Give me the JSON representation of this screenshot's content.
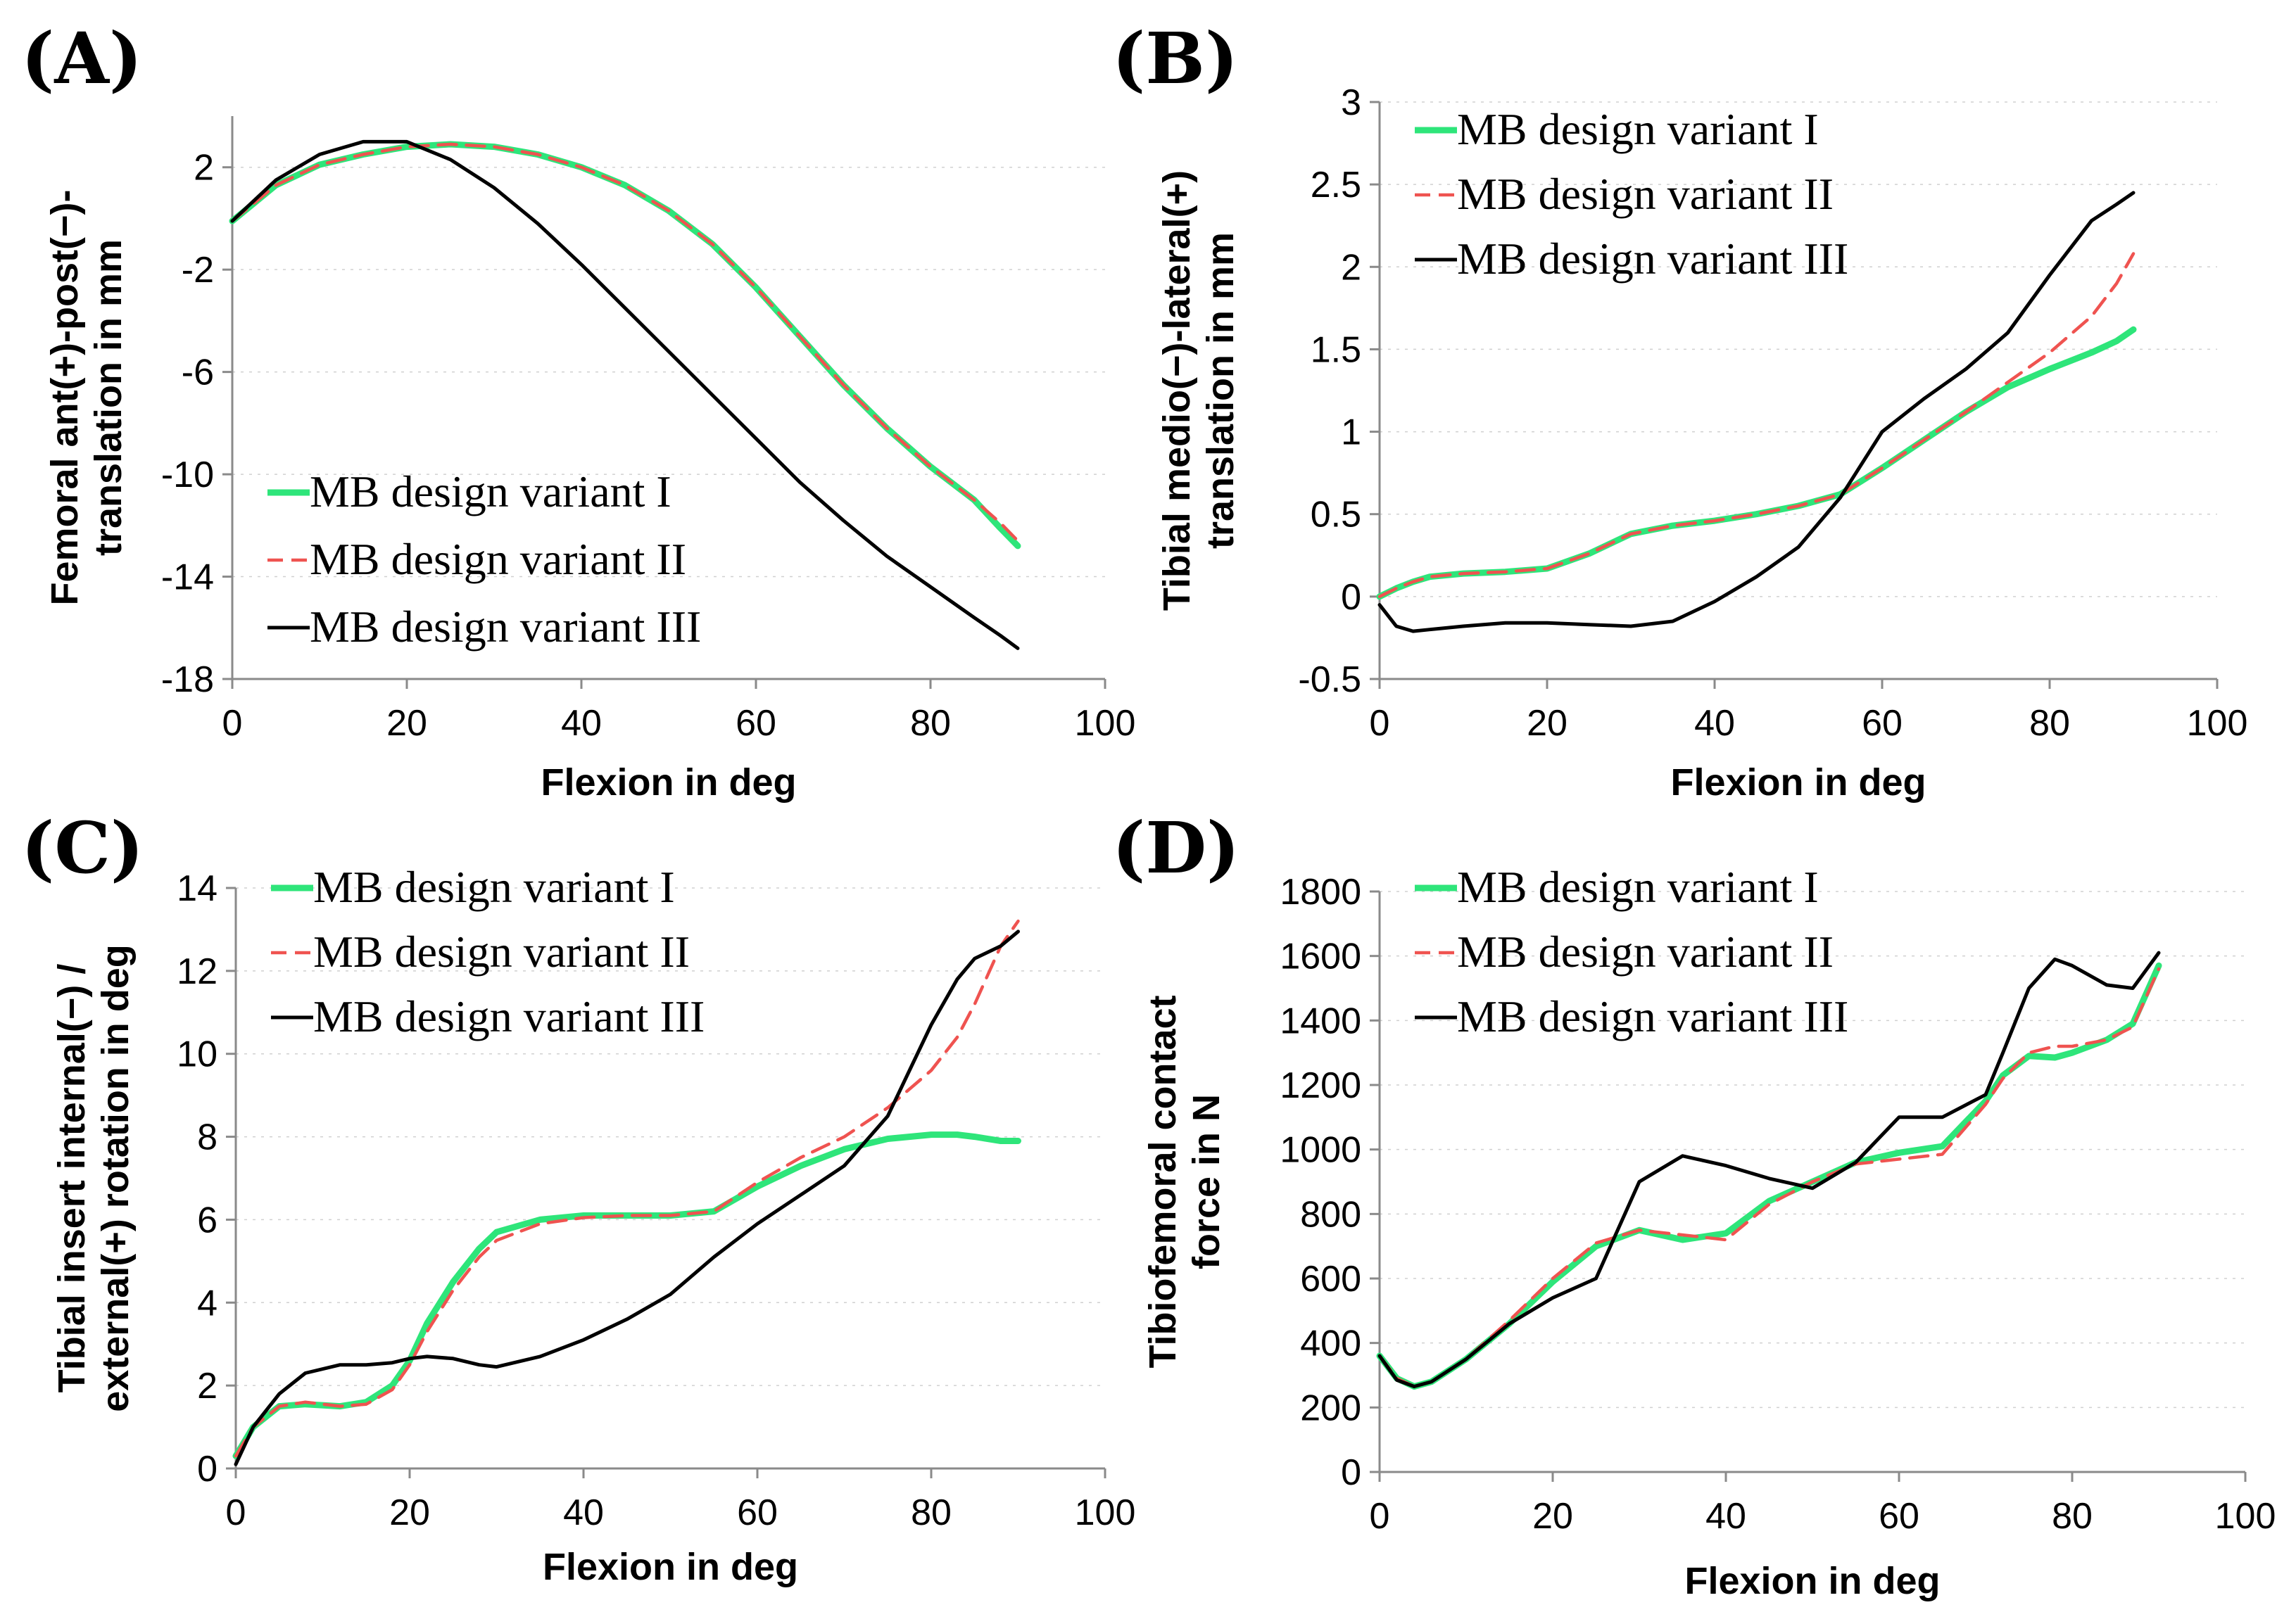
{
  "chart_data": [
    {
      "panel_label": "(A)",
      "type": "line",
      "xlabel": "Flexion in deg",
      "ylabel": [
        "Femoral ant(+)-post(−)-",
        "translation in mm"
      ],
      "xlim": [
        0,
        100
      ],
      "ylim": [
        -18,
        4
      ],
      "xticks": [
        0,
        20,
        40,
        60,
        80,
        100
      ],
      "yticks": [
        -18,
        -14,
        -10,
        -6,
        -2,
        2
      ],
      "grid": true,
      "legend_position": "bottom-left",
      "x": [
        0,
        5,
        10,
        15,
        20,
        25,
        30,
        35,
        40,
        45,
        50,
        55,
        60,
        65,
        70,
        75,
        80,
        85,
        88,
        90
      ],
      "series": [
        {
          "name": "MB design variant I",
          "color": "#2ee57a",
          "style": "solid",
          "values": [
            -0.1,
            1.3,
            2.1,
            2.5,
            2.8,
            2.9,
            2.8,
            2.5,
            2.0,
            1.3,
            0.3,
            -1.0,
            -2.7,
            -4.6,
            -6.5,
            -8.2,
            -9.7,
            -11.0,
            -12.1,
            -12.8
          ]
        },
        {
          "name": "MB design variant II",
          "color": "#ef5350",
          "style": "dashed",
          "values": [
            -0.1,
            1.3,
            2.1,
            2.5,
            2.8,
            2.9,
            2.8,
            2.5,
            2.0,
            1.3,
            0.3,
            -1.0,
            -2.7,
            -4.6,
            -6.5,
            -8.2,
            -9.7,
            -11.0,
            -11.9,
            -12.6
          ]
        },
        {
          "name": "MB design variant III",
          "color": "#000000",
          "style": "solid",
          "values": [
            -0.1,
            1.5,
            2.5,
            3.0,
            3.0,
            2.3,
            1.2,
            -0.2,
            -1.8,
            -3.5,
            -5.2,
            -6.9,
            -8.6,
            -10.3,
            -11.8,
            -13.2,
            -14.4,
            -15.6,
            -16.3,
            -16.8
          ]
        }
      ]
    },
    {
      "panel_label": "(B)",
      "type": "line",
      "xlabel": "Flexion in deg",
      "ylabel": [
        "Tibial medio(−)-lateral(+)",
        "translation in mm"
      ],
      "xlim": [
        0,
        100
      ],
      "ylim": [
        -0.5,
        3
      ],
      "xticks": [
        0,
        20,
        40,
        60,
        80,
        100
      ],
      "yticks": [
        -0.5,
        0,
        0.5,
        1,
        1.5,
        2,
        2.5,
        3
      ],
      "ytick_labels": [
        "-0.5",
        "0",
        "0.5",
        "1",
        "1.5",
        "2",
        "2.5",
        "3"
      ],
      "grid": true,
      "legend_position": "top-left",
      "x": [
        0,
        2,
        4,
        6,
        10,
        15,
        20,
        25,
        30,
        35,
        40,
        45,
        50,
        55,
        60,
        65,
        70,
        75,
        80,
        85,
        88,
        90
      ],
      "series": [
        {
          "name": "MB design variant I",
          "color": "#2ee57a",
          "style": "solid",
          "values": [
            0.0,
            0.05,
            0.09,
            0.12,
            0.14,
            0.15,
            0.17,
            0.26,
            0.38,
            0.43,
            0.46,
            0.5,
            0.55,
            0.62,
            0.78,
            0.95,
            1.12,
            1.27,
            1.38,
            1.48,
            1.55,
            1.62
          ]
        },
        {
          "name": "MB design variant II",
          "color": "#ef5350",
          "style": "dashed",
          "values": [
            0.0,
            0.05,
            0.09,
            0.12,
            0.14,
            0.15,
            0.17,
            0.26,
            0.38,
            0.43,
            0.46,
            0.5,
            0.55,
            0.62,
            0.78,
            0.95,
            1.12,
            1.3,
            1.48,
            1.7,
            1.9,
            2.08
          ]
        },
        {
          "name": "MB design variant III",
          "color": "#000000",
          "style": "solid",
          "values": [
            -0.05,
            -0.18,
            -0.21,
            -0.2,
            -0.18,
            -0.16,
            -0.16,
            -0.17,
            -0.18,
            -0.15,
            -0.03,
            0.12,
            0.3,
            0.6,
            1.0,
            1.2,
            1.38,
            1.6,
            1.95,
            2.28,
            2.38,
            2.45
          ]
        }
      ]
    },
    {
      "panel_label": "(C)",
      "type": "line",
      "xlabel": "Flexion in deg",
      "ylabel": [
        "Tibial insert internal(−) /",
        "external(+) rotation in deg"
      ],
      "xlim": [
        0,
        100
      ],
      "ylim": [
        0,
        14
      ],
      "xticks": [
        0,
        20,
        40,
        60,
        80,
        100
      ],
      "yticks": [
        0,
        2,
        4,
        6,
        8,
        10,
        12,
        14
      ],
      "grid": true,
      "legend_position": "top-left",
      "x": [
        0,
        2,
        5,
        8,
        12,
        15,
        18,
        20,
        22,
        25,
        28,
        30,
        35,
        40,
        45,
        50,
        55,
        60,
        65,
        70,
        75,
        80,
        83,
        85,
        88,
        90
      ],
      "series": [
        {
          "name": "MB design variant I",
          "color": "#2ee57a",
          "style": "solid",
          "values": [
            0.3,
            1.0,
            1.5,
            1.55,
            1.5,
            1.6,
            2.0,
            2.6,
            3.5,
            4.5,
            5.3,
            5.7,
            6.0,
            6.1,
            6.1,
            6.1,
            6.2,
            6.8,
            7.3,
            7.7,
            7.95,
            8.05,
            8.05,
            8.0,
            7.9,
            7.9
          ]
        },
        {
          "name": "MB design variant II",
          "color": "#ef5350",
          "style": "dashed",
          "values": [
            0.3,
            1.0,
            1.5,
            1.6,
            1.5,
            1.55,
            1.9,
            2.5,
            3.3,
            4.3,
            5.1,
            5.5,
            5.9,
            6.05,
            6.1,
            6.1,
            6.2,
            6.9,
            7.5,
            8.0,
            8.7,
            9.6,
            10.4,
            11.2,
            12.6,
            13.2
          ]
        },
        {
          "name": "MB design variant III",
          "color": "#000000",
          "style": "solid",
          "values": [
            0.1,
            1.0,
            1.8,
            2.3,
            2.5,
            2.5,
            2.55,
            2.65,
            2.7,
            2.65,
            2.5,
            2.45,
            2.7,
            3.1,
            3.6,
            4.2,
            5.1,
            5.9,
            6.6,
            7.3,
            8.5,
            10.7,
            11.8,
            12.3,
            12.6,
            12.95
          ]
        }
      ]
    },
    {
      "panel_label": "(D)",
      "type": "line",
      "xlabel": "Flexion in deg",
      "ylabel": [
        "Tibiofemoral contact",
        "force in N"
      ],
      "xlim": [
        0,
        100
      ],
      "ylim": [
        0,
        1800
      ],
      "xticks": [
        0,
        20,
        40,
        60,
        80,
        100
      ],
      "yticks": [
        0,
        200,
        400,
        600,
        800,
        1000,
        1200,
        1400,
        1600,
        1800
      ],
      "grid": true,
      "legend_position": "top-left",
      "x": [
        0,
        2,
        4,
        6,
        10,
        15,
        20,
        25,
        30,
        35,
        40,
        45,
        50,
        55,
        60,
        65,
        70,
        72,
        75,
        78,
        80,
        84,
        87,
        90
      ],
      "series": [
        {
          "name": "MB design variant I",
          "color": "#2ee57a",
          "style": "solid",
          "values": [
            360,
            290,
            265,
            280,
            350,
            460,
            590,
            700,
            750,
            720,
            740,
            840,
            900,
            960,
            990,
            1010,
            1150,
            1230,
            1290,
            1285,
            1300,
            1340,
            1390,
            1570
          ]
        },
        {
          "name": "MB design variant II",
          "color": "#ef5350",
          "style": "dashed",
          "values": [
            360,
            290,
            265,
            280,
            350,
            470,
            600,
            710,
            750,
            735,
            720,
            830,
            900,
            955,
            970,
            985,
            1140,
            1220,
            1300,
            1320,
            1320,
            1340,
            1380,
            1560
          ]
        },
        {
          "name": "MB design variant III",
          "color": "#000000",
          "style": "solid",
          "values": [
            360,
            285,
            265,
            280,
            350,
            460,
            540,
            600,
            900,
            980,
            950,
            910,
            880,
            960,
            1100,
            1100,
            1170,
            1300,
            1500,
            1590,
            1570,
            1510,
            1500,
            1610
          ]
        }
      ]
    }
  ]
}
